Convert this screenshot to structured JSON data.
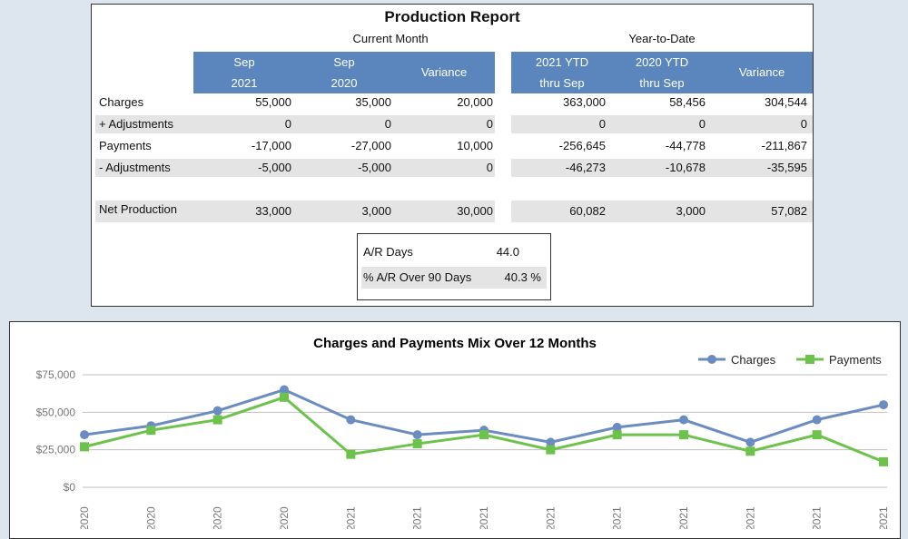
{
  "report": {
    "title": "Production Report",
    "current_month_label": "Current Month",
    "ytd_label": "Year-to-Date",
    "current_headers": [
      {
        "l1": "Sep",
        "l2": "2021"
      },
      {
        "l1": "Sep",
        "l2": "2020"
      },
      {
        "l1": "Variance",
        "l2": ""
      }
    ],
    "ytd_headers": [
      {
        "l1": "2021 YTD",
        "l2": "thru Sep"
      },
      {
        "l1": "2020 YTD",
        "l2": "thru Sep"
      },
      {
        "l1": "Variance",
        "l2": ""
      }
    ],
    "rows": [
      {
        "label": "Charges",
        "values": [
          "55,000",
          "35,000",
          "20,000",
          "363,000",
          "58,456",
          "304,544"
        ]
      },
      {
        "label": "+ Adjustments",
        "values": [
          "0",
          "0",
          "0",
          "0",
          "0",
          "0"
        ]
      },
      {
        "label": "Payments",
        "values": [
          "-17,000",
          "-27,000",
          "10,000",
          "-256,645",
          "-44,778",
          "-211,867"
        ]
      },
      {
        "label": "- Adjustments",
        "values": [
          "-5,000",
          "-5,000",
          "0",
          "-46,273",
          "-10,678",
          "-35,595"
        ]
      },
      {
        "label": "Net Production",
        "values": [
          "33,000",
          "3,000",
          "30,000",
          "60,082",
          "3,000",
          "57,082"
        ]
      }
    ],
    "ar": {
      "days_label": "A/R Days",
      "days_value": "44.0",
      "over90_label": "% A/R Over 90 Days",
      "over90_value": "40.3 %"
    }
  },
  "chart_data": {
    "type": "line",
    "title": "Charges and Payments Mix Over 12 Months",
    "categories": [
      "2020",
      "2020",
      "2020",
      "2020",
      "2021",
      "2021",
      "2021",
      "2021",
      "2021",
      "2021",
      "2021",
      "2021",
      "2021"
    ],
    "series": [
      {
        "name": "Charges",
        "color": "#6b8cc0",
        "marker": "circle",
        "values": [
          35000,
          41000,
          51000,
          65000,
          45000,
          35000,
          38000,
          30000,
          40000,
          45000,
          30000,
          45000,
          55000
        ]
      },
      {
        "name": "Payments",
        "color": "#6cc24a",
        "marker": "square",
        "values": [
          27000,
          38000,
          45000,
          60000,
          22000,
          29000,
          35000,
          25000,
          35000,
          35000,
          24000,
          35000,
          17000
        ]
      }
    ],
    "yticks": [
      "$0",
      "$25,000",
      "$50,000",
      "$75,000"
    ],
    "ytick_values": [
      0,
      25000,
      50000,
      75000
    ],
    "ylim": [
      0,
      75000
    ],
    "grid": true,
    "legend_position": "top-right"
  }
}
